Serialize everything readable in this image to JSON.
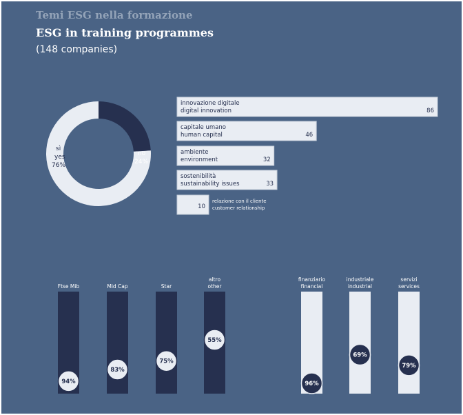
{
  "header": {
    "title_it": "Temi ESG nella formazione",
    "title_en": "ESG in training programmes",
    "subtitle": "(148 companies)"
  },
  "colors": {
    "background": "#4a6385",
    "light": "#e9edf3",
    "dark": "#26304f",
    "bar_border": "#c4ccd8"
  },
  "chart_data": [
    {
      "type": "pie",
      "variant": "donut",
      "slices": [
        {
          "label_it": "sì",
          "label_en": "yes",
          "value": 76,
          "display": "76%"
        },
        {
          "label_it": "no",
          "label_en": "",
          "value": 24,
          "display": "24%"
        }
      ]
    },
    {
      "type": "bar",
      "orientation": "horizontal",
      "xlim": [
        0,
        86
      ],
      "bars": [
        {
          "label_it": "innovazione digitale",
          "label_en": "digital innovation",
          "value": 86
        },
        {
          "label_it": "capitale umano",
          "label_en": "human capital",
          "value": 46
        },
        {
          "label_it": "ambiente",
          "label_en": "environment",
          "value": 32
        },
        {
          "label_it": "sostenibilità",
          "label_en": "sustainability issues",
          "value": 33
        },
        {
          "label_it": "relazione con il cliente",
          "label_en": "customer relationship",
          "value": 10
        }
      ]
    },
    {
      "type": "bar",
      "orientation": "vertical",
      "variant": "gauge",
      "ylim": [
        0,
        100
      ],
      "groups": [
        {
          "name": "index",
          "fill_color": "#26304f",
          "marker_color": "#e9edf3",
          "items": [
            {
              "label_it": "Ftse Mib",
              "label_en": "",
              "value": 94,
              "display": "94%"
            },
            {
              "label_it": "Mid Cap",
              "label_en": "",
              "value": 83,
              "display": "83%"
            },
            {
              "label_it": "Star",
              "label_en": "",
              "value": 75,
              "display": "75%"
            },
            {
              "label_it": "altro",
              "label_en": "other",
              "value": 55,
              "display": "55%"
            }
          ]
        },
        {
          "name": "sector",
          "fill_color": "#e9edf3",
          "marker_color": "#26304f",
          "items": [
            {
              "label_it": "finanziario",
              "label_en": "financial",
              "value": 96,
              "display": "96%"
            },
            {
              "label_it": "industriale",
              "label_en": "industrial",
              "value": 69,
              "display": "69%"
            },
            {
              "label_it": "servizi",
              "label_en": "services",
              "value": 79,
              "display": "79%"
            }
          ]
        }
      ]
    }
  ]
}
